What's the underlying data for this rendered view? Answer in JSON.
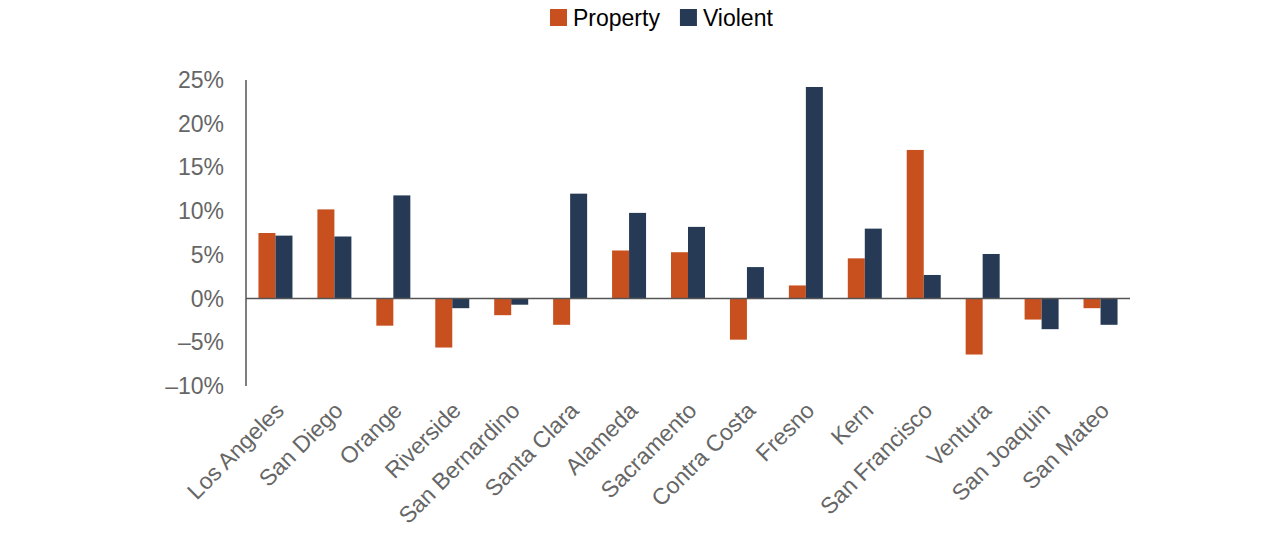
{
  "chart_data": {
    "type": "bar",
    "categories": [
      "Los Angeles",
      "San Diego",
      "Orange",
      "Riverside",
      "San Bernardino",
      "Santa Clara",
      "Alameda",
      "Sacramento",
      "Contra Costa",
      "Fresno",
      "Kern",
      "San Francisco",
      "Ventura",
      "San Joaquin",
      "San Mateo"
    ],
    "series": [
      {
        "name": "Property",
        "color": "#c8501e",
        "values": [
          7.5,
          10.2,
          -3.1,
          -5.6,
          -1.9,
          -3.0,
          5.5,
          5.3,
          -4.7,
          1.5,
          4.6,
          17.0,
          -6.4,
          -2.4,
          -1.1
        ]
      },
      {
        "name": "Violent",
        "color": "#263a55",
        "values": [
          7.2,
          7.1,
          11.8,
          -1.1,
          -0.7,
          12.0,
          9.8,
          8.2,
          3.6,
          24.2,
          8.0,
          2.7,
          5.1,
          -3.5,
          -3.0
        ]
      }
    ],
    "ylim": [
      -10,
      25
    ],
    "yticks": [
      {
        "value": -10,
        "label": "–10%"
      },
      {
        "value": -5,
        "label": "–5%"
      },
      {
        "value": 0,
        "label": "0%"
      },
      {
        "value": 5,
        "label": "5%"
      },
      {
        "value": 10,
        "label": "10%"
      },
      {
        "value": 15,
        "label": "15%"
      },
      {
        "value": 20,
        "label": "20%"
      },
      {
        "value": 25,
        "label": "25%"
      }
    ],
    "grid": false,
    "legend": "top"
  }
}
